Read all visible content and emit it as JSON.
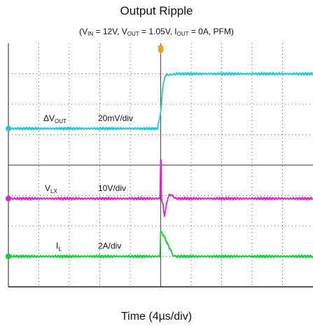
{
  "title": "Output Ripple",
  "subtitle": {
    "open": "(V",
    "vin_sub": "IN",
    "vin_val": " = 12V, V",
    "vout_sub": "OUT",
    "vout_val": " = 1.05V, I",
    "iout_sub": "OUT",
    "iout_val": " = 0A, PFM)"
  },
  "xlabel": "Time (4µs/div)",
  "colors": {
    "vout": "#1fc8d8",
    "vlx": "#e020d8",
    "il": "#10d030",
    "trigger": "#f0a020",
    "grid": "#333333"
  },
  "chart_data": {
    "type": "line",
    "title": "Output Ripple",
    "xlabel": "Time (4µs/div)",
    "x_divisions": 10,
    "y_divisions": 8,
    "x_unit_per_div": "4µs",
    "xlim": [
      0,
      40
    ],
    "trigger_time_us": 20,
    "series": [
      {
        "name": "ΔVOUT",
        "name_base": "ΔV",
        "name_sub": "OUT",
        "scale_label": "20mV/div",
        "ground_div": 5.2,
        "x": [
          0,
          8,
          16,
          19.6,
          20,
          20.3,
          20.6,
          22,
          26,
          30,
          34,
          38,
          40
        ],
        "y_div": [
          0,
          0,
          0,
          0,
          0.55,
          1.4,
          1.75,
          1.8,
          1.8,
          1.8,
          1.8,
          1.8,
          1.8
        ]
      },
      {
        "name": "VLX",
        "name_base": "V",
        "name_sub": "LX",
        "scale_label": "10V/div",
        "ground_div": 2.9,
        "x": [
          0,
          10,
          19.9,
          20,
          20.05,
          20.1,
          20.3,
          20.5,
          20.8,
          21.2,
          22,
          40
        ],
        "y_div": [
          0,
          0,
          0,
          1.3,
          1.3,
          0,
          -0.2,
          -0.6,
          -0.1,
          0.15,
          0,
          0
        ]
      },
      {
        "name": "IL",
        "name_base": "I",
        "name_sub": "L",
        "scale_label": "2A/div",
        "ground_div": 1.0,
        "x": [
          0,
          10,
          19.9,
          20,
          20.15,
          21.7,
          22,
          40
        ],
        "y_div": [
          0,
          0,
          0,
          0.8,
          0.8,
          0,
          0,
          0
        ]
      }
    ]
  }
}
